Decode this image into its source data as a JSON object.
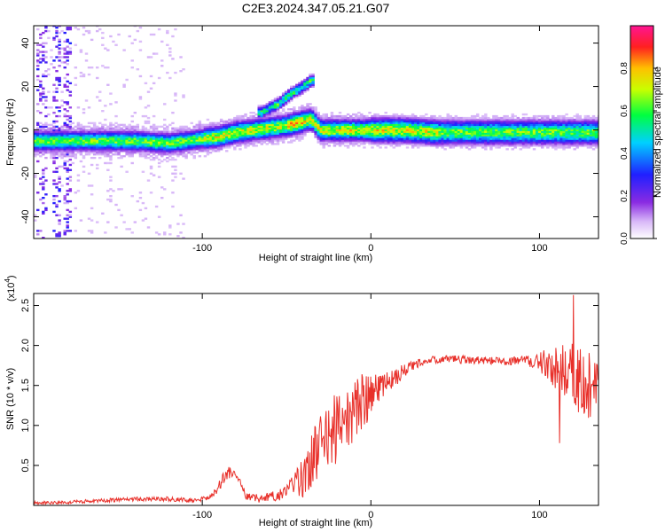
{
  "figure_title": "C2E3.2024.347.05.21.G07",
  "chart_data": [
    {
      "type": "heatmap",
      "xlabel": "Height of straight line (km)",
      "ylabel": "Frequency (Hz)",
      "xlim": [
        -200,
        135
      ],
      "ylim": [
        -50,
        48
      ],
      "xticks": [
        -100,
        0,
        100
      ],
      "xtick_labels": [
        "-100",
        "0",
        "100"
      ],
      "yticks": [
        -40,
        -20,
        0,
        20,
        40
      ],
      "ytick_labels": [
        "-40",
        "-20",
        "0",
        "20",
        "40"
      ],
      "grid": false,
      "colorbar": {
        "label": "Normalized spectral amplitude",
        "range": [
          0,
          1
        ],
        "ticks": [
          0.0,
          0.2,
          0.4,
          0.6,
          0.8
        ],
        "tick_labels": [
          "0.0",
          "0.2",
          "0.4",
          "0.6",
          "0.8"
        ],
        "colormap": "rainbow (white, violet, blue, cyan, green, yellow, orange, red, magenta)"
      },
      "ridge": {
        "description": "dominant frequency track",
        "points": [
          {
            "x": -200,
            "y": -5
          },
          {
            "x": -180,
            "y": -5
          },
          {
            "x": -160,
            "y": -5
          },
          {
            "x": -140,
            "y": -5
          },
          {
            "x": -120,
            "y": -6
          },
          {
            "x": -110,
            "y": -5
          },
          {
            "x": -100,
            "y": -4
          },
          {
            "x": -90,
            "y": -3
          },
          {
            "x": -80,
            "y": -1
          },
          {
            "x": -70,
            "y": 0
          },
          {
            "x": -60,
            "y": 1
          },
          {
            "x": -50,
            "y": 2
          },
          {
            "x": -40,
            "y": 4
          },
          {
            "x": -35,
            "y": 5
          },
          {
            "x": -30,
            "y": 0
          },
          {
            "x": -20,
            "y": 0
          },
          {
            "x": -10,
            "y": 0
          },
          {
            "x": 0,
            "y": 0
          },
          {
            "x": 20,
            "y": 0
          },
          {
            "x": 40,
            "y": -1
          },
          {
            "x": 60,
            "y": -1
          },
          {
            "x": 80,
            "y": -1
          },
          {
            "x": 100,
            "y": -1
          },
          {
            "x": 120,
            "y": -1
          },
          {
            "x": 135,
            "y": -1
          }
        ]
      },
      "branch": {
        "description": "secondary rising branch",
        "points": [
          {
            "x": -65,
            "y": 8
          },
          {
            "x": -55,
            "y": 12
          },
          {
            "x": -47,
            "y": 17
          },
          {
            "x": -40,
            "y": 20
          },
          {
            "x": -35,
            "y": 23
          }
        ]
      }
    },
    {
      "type": "line",
      "xlabel": "Height of straight line (km)",
      "ylabel": "SNR (10 * v/v)",
      "y_scale_note": "(x10",
      "y_scale_exp": "4",
      "xlim": [
        -200,
        135
      ],
      "ylim": [
        0,
        2.65
      ],
      "xticks": [
        -100,
        0,
        100
      ],
      "xtick_labels": [
        "-100",
        "0",
        "100"
      ],
      "yticks": [
        0.5,
        1.0,
        1.5,
        2.0,
        2.5
      ],
      "ytick_labels": [
        "0.5",
        "1.0",
        "1.5",
        "2.0",
        "2.5"
      ],
      "grid": false,
      "series": [
        {
          "color": "#e8302a",
          "trend": [
            {
              "x": -200,
              "y": 0.03
            },
            {
              "x": -180,
              "y": 0.04
            },
            {
              "x": -160,
              "y": 0.06
            },
            {
              "x": -140,
              "y": 0.08
            },
            {
              "x": -120,
              "y": 0.08
            },
            {
              "x": -105,
              "y": 0.06
            },
            {
              "x": -95,
              "y": 0.1
            },
            {
              "x": -90,
              "y": 0.22
            },
            {
              "x": -86,
              "y": 0.38
            },
            {
              "x": -82,
              "y": 0.42
            },
            {
              "x": -78,
              "y": 0.3
            },
            {
              "x": -74,
              "y": 0.12
            },
            {
              "x": -65,
              "y": 0.08
            },
            {
              "x": -55,
              "y": 0.12
            },
            {
              "x": -48,
              "y": 0.22
            },
            {
              "x": -42,
              "y": 0.3
            },
            {
              "x": -38,
              "y": 0.4
            },
            {
              "x": -34,
              "y": 0.6
            },
            {
              "x": -30,
              "y": 0.8
            },
            {
              "x": -26,
              "y": 0.9
            },
            {
              "x": -22,
              "y": 0.95
            },
            {
              "x": -18,
              "y": 0.95
            },
            {
              "x": -14,
              "y": 1.05
            },
            {
              "x": -10,
              "y": 1.2
            },
            {
              "x": -5,
              "y": 1.3
            },
            {
              "x": 0,
              "y": 1.35
            },
            {
              "x": 5,
              "y": 1.45
            },
            {
              "x": 10,
              "y": 1.55
            },
            {
              "x": 15,
              "y": 1.6
            },
            {
              "x": 20,
              "y": 1.7
            },
            {
              "x": 30,
              "y": 1.8
            },
            {
              "x": 40,
              "y": 1.83
            },
            {
              "x": 60,
              "y": 1.82
            },
            {
              "x": 80,
              "y": 1.8
            },
            {
              "x": 90,
              "y": 1.82
            },
            {
              "x": 100,
              "y": 1.8
            },
            {
              "x": 110,
              "y": 1.75
            },
            {
              "x": 115,
              "y": 1.72
            },
            {
              "x": 120,
              "y": 1.65
            },
            {
              "x": 125,
              "y": 1.55
            },
            {
              "x": 130,
              "y": 1.5
            },
            {
              "x": 135,
              "y": 1.5
            }
          ],
          "noise": [
            {
              "x": -200,
              "a": 0.02
            },
            {
              "x": -95,
              "a": 0.03
            },
            {
              "x": -88,
              "a": 0.1
            },
            {
              "x": -75,
              "a": 0.04
            },
            {
              "x": -50,
              "a": 0.08
            },
            {
              "x": -35,
              "a": 0.35
            },
            {
              "x": -20,
              "a": 0.45
            },
            {
              "x": -5,
              "a": 0.35
            },
            {
              "x": 10,
              "a": 0.12
            },
            {
              "x": 30,
              "a": 0.05
            },
            {
              "x": 90,
              "a": 0.05
            },
            {
              "x": 100,
              "a": 0.12
            },
            {
              "x": 110,
              "a": 0.3
            },
            {
              "x": 120,
              "a": 0.45
            },
            {
              "x": 135,
              "a": 0.4
            }
          ],
          "peak": {
            "x": 120,
            "y": 2.63
          },
          "trough": {
            "x": 112,
            "y": 0.78
          }
        }
      ]
    }
  ]
}
